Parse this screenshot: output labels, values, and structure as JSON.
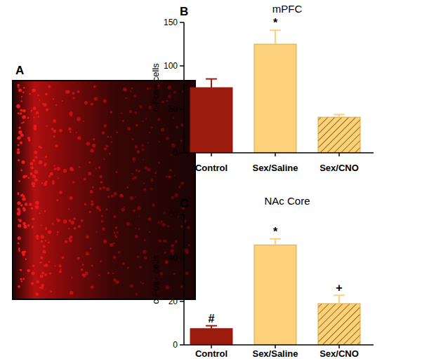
{
  "image_panel": {
    "label": "A"
  },
  "chart_data": [
    {
      "type": "bar",
      "panel": "B",
      "title": "mPFC",
      "y_label": "c-Fos+ cells",
      "categories": [
        "Control",
        "Sex/Saline",
        "Sex/CNO"
      ],
      "values": [
        75,
        125,
        41
      ],
      "errors": [
        10,
        16,
        3
      ],
      "significance": [
        null,
        "*",
        null
      ],
      "colors": [
        "#9b1b0e",
        "#fdd17b",
        "#fdd17b"
      ],
      "ylim": [
        0,
        150
      ],
      "yticks": [
        0,
        50,
        100,
        150
      ],
      "grid": false
    },
    {
      "type": "bar",
      "panel": "C",
      "title": "NAc Core",
      "y_label": "c-Fos+ cells",
      "categories": [
        "Control",
        "Sex/Saline",
        "Sex/CNO"
      ],
      "values": [
        7.5,
        46,
        19
      ],
      "errors": [
        1.3,
        2.8,
        3.8
      ],
      "significance": [
        "#",
        "*",
        "+"
      ],
      "colors": [
        "#9b1b0e",
        "#fdd17b",
        "#fdd17b"
      ],
      "ylim": [
        0,
        60
      ],
      "yticks": [
        0,
        20,
        40,
        60
      ],
      "grid": false
    }
  ]
}
